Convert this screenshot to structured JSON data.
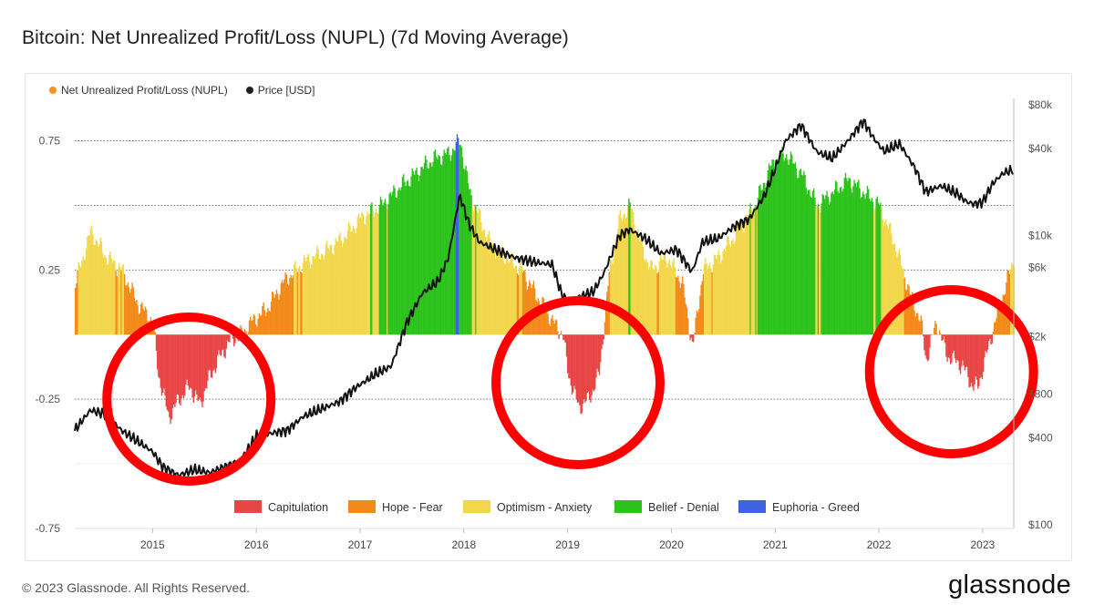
{
  "title": "Bitcoin: Net Unrealized Profit/Loss (NUPL) (7d Moving Average)",
  "footer": "© 2023 Glassnode. All Rights Reserved.",
  "brand": "glassnode",
  "colors": {
    "capitulation": "#e84545",
    "hope_fear": "#f28a1a",
    "optimism_anxiety": "#f2d74b",
    "belief_denial": "#2cc21b",
    "euphoria_greed": "#3f63e0",
    "price": "#111111",
    "nupl_legend": "#f7931a",
    "circles": "#ff0000"
  },
  "chart_data": {
    "type": "area",
    "series": [
      {
        "name": "Net Unrealized Profit/Loss (NUPL)",
        "x": [
          2014.25,
          2014.4,
          2014.55,
          2014.7,
          2014.85,
          2015.0,
          2015.05,
          2015.15,
          2015.25,
          2015.35,
          2015.45,
          2015.55,
          2015.65,
          2015.75,
          2015.85,
          2015.95,
          2016.1,
          2016.25,
          2016.45,
          2016.65,
          2016.85,
          2017.0,
          2017.2,
          2017.4,
          2017.55,
          2017.7,
          2017.85,
          2017.96,
          2018.05,
          2018.15,
          2018.25,
          2018.4,
          2018.55,
          2018.7,
          2018.85,
          2018.95,
          2019.0,
          2019.1,
          2019.2,
          2019.3,
          2019.4,
          2019.5,
          2019.6,
          2019.7,
          2019.8,
          2019.95,
          2020.1,
          2020.2,
          2020.3,
          2020.45,
          2020.6,
          2020.8,
          2020.95,
          2021.1,
          2021.25,
          2021.4,
          2021.55,
          2021.7,
          2021.85,
          2022.0,
          2022.15,
          2022.3,
          2022.4,
          2022.45,
          2022.55,
          2022.65,
          2022.8,
          2022.9,
          2022.95,
          2023.05,
          2023.15,
          2023.3
        ],
        "values": [
          0.2,
          0.4,
          0.3,
          0.25,
          0.12,
          0.05,
          -0.15,
          -0.32,
          -0.25,
          -0.2,
          -0.27,
          -0.16,
          -0.08,
          -0.02,
          0.0,
          0.05,
          0.1,
          0.2,
          0.28,
          0.32,
          0.38,
          0.45,
          0.5,
          0.58,
          0.63,
          0.68,
          0.7,
          0.75,
          0.55,
          0.45,
          0.35,
          0.3,
          0.25,
          0.15,
          0.05,
          0.0,
          -0.15,
          -0.28,
          -0.25,
          -0.15,
          0.25,
          0.45,
          0.5,
          0.35,
          0.25,
          0.3,
          0.2,
          -0.05,
          0.25,
          0.3,
          0.38,
          0.5,
          0.65,
          0.7,
          0.62,
          0.5,
          0.55,
          0.6,
          0.55,
          0.5,
          0.35,
          0.15,
          0.05,
          -0.1,
          0.05,
          -0.08,
          -0.12,
          -0.2,
          -0.2,
          -0.05,
          0.1,
          0.3
        ]
      },
      {
        "name": "Price [USD]",
        "x": [
          2014.25,
          2014.4,
          2014.55,
          2014.7,
          2014.85,
          2015.0,
          2015.1,
          2015.25,
          2015.4,
          2015.55,
          2015.7,
          2015.85,
          2016.0,
          2016.15,
          2016.3,
          2016.45,
          2016.6,
          2016.8,
          2016.95,
          2017.15,
          2017.3,
          2017.45,
          2017.6,
          2017.75,
          2017.85,
          2017.96,
          2018.05,
          2018.15,
          2018.3,
          2018.5,
          2018.7,
          2018.85,
          2018.95,
          2019.0,
          2019.1,
          2019.25,
          2019.35,
          2019.5,
          2019.6,
          2019.75,
          2019.9,
          2020.05,
          2020.2,
          2020.3,
          2020.45,
          2020.6,
          2020.75,
          2020.9,
          2021.0,
          2021.1,
          2021.25,
          2021.4,
          2021.55,
          2021.7,
          2021.85,
          2021.95,
          2022.05,
          2022.2,
          2022.35,
          2022.45,
          2022.6,
          2022.75,
          2022.85,
          2022.92,
          2023.0,
          2023.1,
          2023.2,
          2023.3
        ],
        "values": [
          450,
          620,
          580,
          450,
          380,
          320,
          250,
          220,
          240,
          230,
          250,
          280,
          410,
          430,
          450,
          560,
          620,
          710,
          880,
          1100,
          1250,
          2500,
          4000,
          4800,
          7000,
          19000,
          12000,
          9000,
          8000,
          7000,
          6500,
          6300,
          3800,
          3600,
          3700,
          4100,
          5500,
          10000,
          11000,
          9500,
          7500,
          8000,
          5600,
          9000,
          9500,
          11500,
          13000,
          19000,
          29000,
          45000,
          58000,
          38000,
          34000,
          45000,
          62000,
          47000,
          38000,
          43000,
          29000,
          20000,
          22000,
          19500,
          17000,
          16500,
          17000,
          23000,
          27000,
          28500
        ]
      }
    ],
    "legend": [
      "Net Unrealized Profit/Loss (NUPL)",
      "Price [USD]"
    ],
    "zones": [
      "Capitulation",
      "Hope - Fear",
      "Optimism - Anxiety",
      "Belief - Denial",
      "Euphoria - Greed"
    ],
    "x_ticks": [
      "2015",
      "2016",
      "2017",
      "2018",
      "2019",
      "2020",
      "2021",
      "2022",
      "2023"
    ],
    "y_left_ticks": [
      "0.75",
      "0.25",
      "-0.25",
      "-0.75"
    ],
    "y_right_ticks": [
      "$80k",
      "$40k",
      "$10k",
      "$6k",
      "$2k",
      "$800",
      "$400",
      "$100"
    ],
    "ylim_left": [
      -0.75,
      0.9
    ],
    "ylim_right": [
      100,
      80000
    ],
    "y_right_scale": "log",
    "xlim": [
      2014.25,
      2023.3
    ],
    "highlight_circles_years": [
      2015.35,
      2019.1,
      2022.7
    ]
  }
}
